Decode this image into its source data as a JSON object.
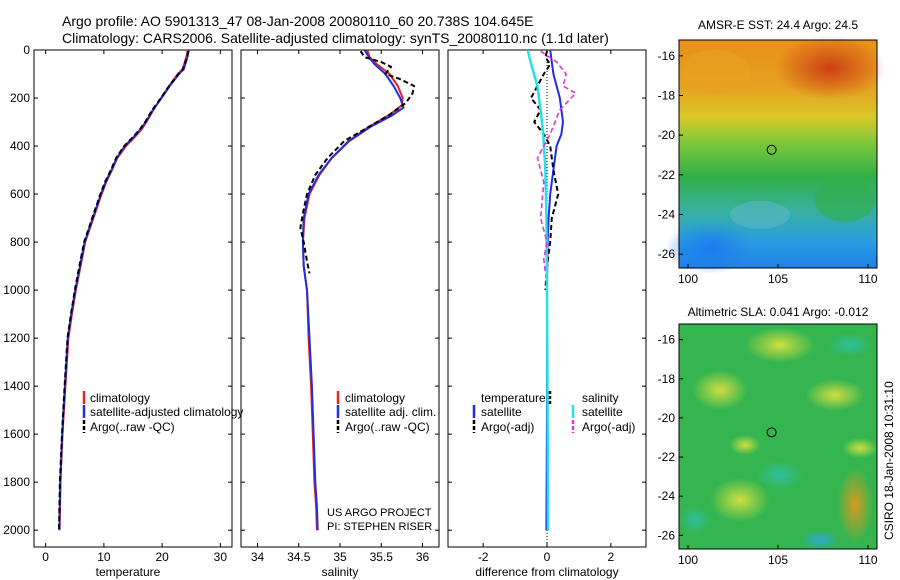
{
  "figure": {
    "title_line1": "Argo profile: AO 5901313_47 08-Jan-2008 20080110_60 20.738S 104.645E",
    "title_line2": "Climatology: CARS2006. Satellite-adjusted climatology: synTS_20080110.nc (1.1d later)",
    "credit_side": "CSIRO 18-Jan-2008 10:31:10",
    "project_line1": "US ARGO PROJECT",
    "project_line2": "PI: STEPHEN RISER"
  },
  "colors": {
    "climatology": "#e8231e",
    "satellite": "#1f2ee0",
    "argo_temp": "#000000",
    "sal_satellite": "#27dfe6",
    "sal_argo": "#e233d9"
  },
  "chart_data": [
    {
      "id": "temperature",
      "type": "line",
      "xlabel": "temperature",
      "ylabel": "",
      "xlim": [
        -2,
        32
      ],
      "ylim": [
        2070,
        0
      ],
      "xticks": [
        0,
        10,
        20,
        30
      ],
      "yticks": [
        0,
        200,
        400,
        600,
        800,
        1000,
        1200,
        1400,
        1600,
        1800,
        2000
      ],
      "legend": [
        "climatology",
        "satellite-adjusted climatology",
        "Argo(..raw -QC)"
      ],
      "series": [
        {
          "name": "climatology",
          "x": [
            24.4,
            24.2,
            23.9,
            23.5,
            22.7,
            21.2,
            19.8,
            18.5,
            17.3,
            16.5,
            15.4,
            13.8,
            12.3,
            11.4,
            10.4,
            9.6,
            8.9,
            8.2,
            7.5,
            6.8,
            6.0,
            5.2,
            4.5,
            3.9,
            3.4,
            2.9,
            2.55,
            2.4
          ],
          "y": [
            0,
            25,
            50,
            80,
            100,
            150,
            200,
            250,
            300,
            330,
            360,
            400,
            450,
            500,
            550,
            600,
            650,
            700,
            750,
            800,
            900,
            1000,
            1100,
            1200,
            1400,
            1600,
            1800,
            2000
          ]
        },
        {
          "name": "satellite-adjusted climatology",
          "x": [
            24.6,
            24.4,
            24.1,
            23.7,
            22.9,
            21.3,
            19.9,
            18.4,
            17.2,
            16.3,
            15.2,
            13.6,
            12.2,
            11.3,
            10.3,
            9.5,
            8.8,
            8.1,
            7.4,
            6.7,
            5.9,
            5.1,
            4.4,
            3.8,
            3.3,
            2.85,
            2.5,
            2.35
          ],
          "y": [
            0,
            25,
            50,
            80,
            100,
            150,
            200,
            250,
            300,
            330,
            360,
            400,
            450,
            500,
            550,
            600,
            650,
            700,
            750,
            800,
            900,
            1000,
            1100,
            1200,
            1400,
            1600,
            1800,
            2000
          ]
        },
        {
          "name": "Argo(..raw -QC)",
          "x": [
            24.5,
            24.3,
            24.0,
            23.6,
            22.8,
            21.2,
            19.8,
            18.3,
            17.1,
            16.2,
            15.1,
            13.5,
            12.1,
            11.2,
            10.2,
            9.4,
            8.7,
            8.0,
            7.3,
            6.6,
            5.8,
            5.0,
            4.35,
            3.75,
            3.25,
            2.8,
            2.45,
            2.3
          ],
          "y": [
            5,
            25,
            50,
            80,
            100,
            150,
            200,
            250,
            300,
            330,
            360,
            400,
            450,
            500,
            550,
            600,
            650,
            700,
            750,
            800,
            900,
            1000,
            1100,
            1200,
            1400,
            1600,
            1800,
            1995
          ]
        }
      ]
    },
    {
      "id": "salinity",
      "type": "line",
      "xlabel": "salinity",
      "ylabel": "",
      "xlim": [
        33.8,
        36.2
      ],
      "ylim": [
        2070,
        0
      ],
      "xticks": [
        34,
        34.5,
        35,
        35.5,
        36
      ],
      "yticks": [
        0,
        200,
        400,
        600,
        800,
        1000,
        1200,
        1400,
        1600,
        1800,
        2000
      ],
      "legend": [
        "climatology",
        "satellite adj. clim.",
        "Argo(..raw -QC)"
      ],
      "series": [
        {
          "name": "climatology",
          "x": [
            35.33,
            35.36,
            35.45,
            35.6,
            35.7,
            35.76,
            35.75,
            35.6,
            35.35,
            35.1,
            34.9,
            34.75,
            34.63,
            34.57,
            34.55,
            34.56,
            34.6,
            34.62,
            34.65,
            34.67,
            34.69,
            34.71,
            34.72
          ],
          "y": [
            0,
            30,
            60,
            100,
            150,
            200,
            230,
            270,
            320,
            380,
            450,
            520,
            600,
            700,
            800,
            900,
            1000,
            1200,
            1400,
            1600,
            1800,
            1900,
            2000
          ]
        },
        {
          "name": "satellite adj. clim.",
          "x": [
            35.3,
            35.35,
            35.42,
            35.55,
            35.65,
            35.73,
            35.77,
            35.62,
            35.37,
            35.11,
            34.9,
            34.74,
            34.62,
            34.56,
            34.55,
            34.56,
            34.6,
            34.63,
            34.66,
            34.68,
            34.7,
            34.72,
            34.73
          ],
          "y": [
            0,
            30,
            60,
            100,
            150,
            200,
            240,
            275,
            320,
            380,
            450,
            520,
            600,
            700,
            800,
            900,
            1000,
            1200,
            1400,
            1600,
            1800,
            1900,
            2000
          ]
        },
        {
          "name": "Argo(..raw -QC)",
          "x": [
            35.25,
            35.3,
            35.5,
            35.62,
            35.55,
            35.72,
            35.9,
            35.88,
            35.8,
            35.6,
            35.35,
            35.05,
            34.85,
            34.7,
            34.6,
            34.55,
            34.52,
            34.56,
            34.6,
            34.63
          ],
          "y": [
            5,
            30,
            50,
            70,
            100,
            120,
            150,
            180,
            220,
            270,
            320,
            380,
            450,
            520,
            600,
            680,
            740,
            800,
            880,
            930
          ]
        }
      ]
    },
    {
      "id": "difference",
      "type": "line",
      "xlabel": "difference from climatology",
      "ylabel": "",
      "xlim": [
        -3.1,
        3.1
      ],
      "ylim": [
        2070,
        0
      ],
      "xticks": [
        -2,
        0,
        2
      ],
      "yticks": [
        0,
        200,
        400,
        600,
        800,
        1000,
        1200,
        1400,
        1600,
        1800,
        2000
      ],
      "legend_temperature_title": "temperature",
      "legend_salinity_title": "salinity",
      "legend_temperature": [
        "satellite",
        "Argo(-adj)"
      ],
      "legend_salinity": [
        "satellite",
        "Argo(-adj)"
      ],
      "series": [
        {
          "name": "temperature satellite",
          "x": [
            0.1,
            0.15,
            0.2,
            0.3,
            0.4,
            0.45,
            0.5,
            0.45,
            0.3,
            0.2,
            0.1,
            0.05,
            0.02,
            0.0,
            0.0,
            -0.02
          ],
          "y": [
            0,
            50,
            100,
            150,
            200,
            250,
            300,
            350,
            400,
            500,
            600,
            700,
            800,
            1000,
            1500,
            2000
          ]
        },
        {
          "name": "temperature Argo(-adj)",
          "x": [
            0.0,
            -0.05,
            0.1,
            -0.1,
            -0.3,
            -0.5,
            -0.2,
            -0.4,
            -0.1,
            0.1,
            0.2,
            0.35,
            0.15,
            0.1,
            0.0,
            -0.05
          ],
          "y": [
            5,
            30,
            60,
            100,
            150,
            200,
            250,
            300,
            350,
            400,
            500,
            600,
            700,
            800,
            900,
            1000
          ]
        },
        {
          "name": "salinity satellite",
          "x": [
            -0.6,
            -0.55,
            -0.45,
            -0.3,
            -0.2,
            -0.12,
            -0.05,
            -0.02,
            0.0,
            0.02,
            0.03
          ],
          "y": [
            0,
            30,
            80,
            150,
            250,
            350,
            500,
            700,
            1000,
            1500,
            2000
          ]
        },
        {
          "name": "salinity Argo(-adj)",
          "x": [
            -0.2,
            0.3,
            0.6,
            0.5,
            0.9,
            0.4,
            0.1,
            -0.3,
            -0.1,
            -0.2,
            0.0,
            -0.1,
            -0.05
          ],
          "y": [
            5,
            50,
            100,
            150,
            180,
            250,
            350,
            450,
            550,
            700,
            800,
            870,
            930
          ]
        }
      ]
    },
    {
      "id": "sst_map",
      "type": "heatmap",
      "title": "AMSR-E SST: 24.4 Argo: 24.5",
      "xlim": [
        99.5,
        110.5
      ],
      "ylim": [
        -26.7,
        -15.2
      ],
      "xticks": [
        100,
        105,
        110
      ],
      "yticks": [
        -16,
        -18,
        -20,
        -22,
        -24,
        -26
      ],
      "marker": {
        "lon": 104.645,
        "lat": -20.738
      }
    },
    {
      "id": "sla_map",
      "type": "heatmap",
      "title": "Altimetric SLA: 0.041 Argo: -0.012",
      "xlim": [
        99.5,
        110.5
      ],
      "ylim": [
        -26.7,
        -15.2
      ],
      "xticks": [
        100,
        105,
        110
      ],
      "yticks": [
        -16,
        -18,
        -20,
        -22,
        -24,
        -26
      ],
      "marker": {
        "lon": 104.645,
        "lat": -20.738
      }
    }
  ]
}
